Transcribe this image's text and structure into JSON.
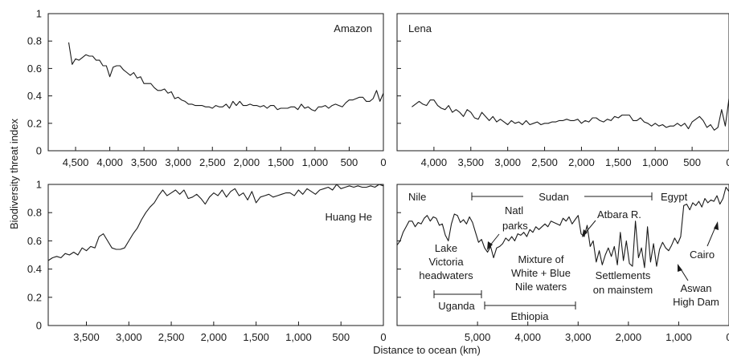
{
  "chart_data": {
    "type": "line",
    "ylabel": "Biodiversity threat index",
    "xlabel": "Distance to ocean (km)",
    "panels": [
      {
        "name": "Amazon",
        "xlim": [
          4900,
          0
        ],
        "ylim": [
          0,
          1
        ],
        "xticks": [
          4500,
          4000,
          3500,
          3000,
          2500,
          2000,
          1500,
          1000,
          500,
          0
        ],
        "xtick_labels": [
          "4,500",
          "4,000",
          "3,500",
          "3,000",
          "2,500",
          "2,000",
          "1,500",
          "1,000",
          "500",
          "0"
        ],
        "yticks": [
          0,
          0.2,
          0.4,
          0.6,
          0.8,
          1
        ],
        "ytick_labels": [
          "0",
          "0.2",
          "0.4",
          "0.6",
          "0.8",
          "1"
        ],
        "x": [
          4600,
          4550,
          4500,
          4450,
          4400,
          4350,
          4300,
          4250,
          4200,
          4150,
          4100,
          4050,
          4000,
          3950,
          3900,
          3850,
          3800,
          3750,
          3700,
          3650,
          3600,
          3550,
          3500,
          3450,
          3400,
          3350,
          3300,
          3250,
          3200,
          3150,
          3100,
          3050,
          3000,
          2950,
          2900,
          2850,
          2800,
          2750,
          2700,
          2650,
          2600,
          2550,
          2500,
          2450,
          2400,
          2350,
          2300,
          2250,
          2200,
          2150,
          2100,
          2050,
          2000,
          1950,
          1900,
          1850,
          1800,
          1750,
          1700,
          1650,
          1600,
          1550,
          1500,
          1450,
          1400,
          1350,
          1300,
          1250,
          1200,
          1150,
          1100,
          1050,
          1000,
          950,
          900,
          850,
          800,
          750,
          700,
          650,
          600,
          550,
          500,
          450,
          400,
          350,
          300,
          250,
          200,
          150,
          100,
          50,
          0
        ],
        "y": [
          0.79,
          0.63,
          0.67,
          0.66,
          0.68,
          0.7,
          0.69,
          0.69,
          0.66,
          0.66,
          0.62,
          0.62,
          0.54,
          0.61,
          0.62,
          0.62,
          0.59,
          0.57,
          0.55,
          0.57,
          0.53,
          0.54,
          0.49,
          0.49,
          0.49,
          0.46,
          0.44,
          0.44,
          0.45,
          0.42,
          0.43,
          0.38,
          0.39,
          0.37,
          0.36,
          0.34,
          0.34,
          0.33,
          0.33,
          0.33,
          0.32,
          0.32,
          0.31,
          0.33,
          0.32,
          0.32,
          0.34,
          0.31,
          0.36,
          0.33,
          0.36,
          0.33,
          0.33,
          0.34,
          0.33,
          0.33,
          0.32,
          0.33,
          0.31,
          0.33,
          0.33,
          0.3,
          0.31,
          0.31,
          0.31,
          0.32,
          0.32,
          0.3,
          0.34,
          0.31,
          0.32,
          0.3,
          0.29,
          0.32,
          0.32,
          0.33,
          0.31,
          0.33,
          0.34,
          0.33,
          0.32,
          0.35,
          0.37,
          0.37,
          0.38,
          0.39,
          0.39,
          0.36,
          0.36,
          0.38,
          0.44,
          0.36,
          0.42
        ]
      },
      {
        "name": "Lena",
        "xlim": [
          4500,
          0
        ],
        "ylim": [
          0,
          1
        ],
        "xticks": [
          4000,
          3500,
          3000,
          2500,
          2000,
          1500,
          1000,
          500,
          0
        ],
        "xtick_labels": [
          "4,000",
          "3,500",
          "3,000",
          "2,500",
          "2,000",
          "1,500",
          "1,000",
          "500",
          "0"
        ],
        "yticks": [
          0,
          0.2,
          0.4,
          0.6,
          0.8,
          1
        ],
        "x": [
          4300,
          4250,
          4200,
          4150,
          4100,
          4050,
          4000,
          3950,
          3900,
          3850,
          3800,
          3750,
          3700,
          3650,
          3600,
          3550,
          3500,
          3450,
          3400,
          3350,
          3300,
          3250,
          3200,
          3150,
          3100,
          3050,
          3000,
          2950,
          2900,
          2850,
          2800,
          2750,
          2700,
          2650,
          2600,
          2550,
          2500,
          2450,
          2400,
          2350,
          2300,
          2250,
          2200,
          2150,
          2100,
          2050,
          2000,
          1950,
          1900,
          1850,
          1800,
          1750,
          1700,
          1650,
          1600,
          1550,
          1500,
          1450,
          1400,
          1350,
          1300,
          1250,
          1200,
          1150,
          1100,
          1050,
          1000,
          950,
          900,
          850,
          800,
          750,
          700,
          650,
          600,
          550,
          500,
          450,
          400,
          350,
          300,
          250,
          200,
          150,
          100,
          50,
          0
        ],
        "y": [
          0.32,
          0.34,
          0.36,
          0.34,
          0.33,
          0.37,
          0.37,
          0.33,
          0.31,
          0.3,
          0.33,
          0.28,
          0.3,
          0.28,
          0.25,
          0.3,
          0.28,
          0.24,
          0.23,
          0.28,
          0.25,
          0.22,
          0.25,
          0.21,
          0.23,
          0.21,
          0.19,
          0.22,
          0.2,
          0.21,
          0.19,
          0.22,
          0.19,
          0.2,
          0.21,
          0.19,
          0.2,
          0.2,
          0.21,
          0.21,
          0.22,
          0.22,
          0.23,
          0.22,
          0.22,
          0.23,
          0.2,
          0.22,
          0.21,
          0.24,
          0.24,
          0.22,
          0.21,
          0.23,
          0.22,
          0.25,
          0.24,
          0.26,
          0.26,
          0.26,
          0.22,
          0.22,
          0.24,
          0.21,
          0.2,
          0.18,
          0.2,
          0.18,
          0.19,
          0.17,
          0.18,
          0.18,
          0.2,
          0.18,
          0.2,
          0.16,
          0.21,
          0.23,
          0.25,
          0.22,
          0.17,
          0.19,
          0.15,
          0.17,
          0.3,
          0.18,
          0.38
        ]
      },
      {
        "name": "Huang He",
        "xlim": [
          3950,
          0
        ],
        "ylim": [
          0,
          1
        ],
        "xticks": [
          3500,
          3000,
          2500,
          2000,
          1500,
          1000,
          500,
          0
        ],
        "xtick_labels": [
          "3,500",
          "3,000",
          "2,500",
          "2,000",
          "1,500",
          "1,000",
          "500",
          "0"
        ],
        "yticks": [
          0,
          0.2,
          0.4,
          0.6,
          0.8,
          1
        ],
        "ytick_labels": [
          "0",
          "0.2",
          "0.4",
          "0.6",
          "0.8",
          "1"
        ],
        "x": [
          3950,
          3900,
          3850,
          3800,
          3750,
          3700,
          3650,
          3600,
          3550,
          3500,
          3450,
          3400,
          3350,
          3300,
          3250,
          3200,
          3150,
          3100,
          3050,
          3000,
          2950,
          2900,
          2850,
          2800,
          2750,
          2700,
          2650,
          2600,
          2550,
          2500,
          2450,
          2400,
          2350,
          2300,
          2250,
          2200,
          2150,
          2100,
          2050,
          2000,
          1950,
          1900,
          1850,
          1800,
          1750,
          1700,
          1650,
          1600,
          1550,
          1500,
          1450,
          1400,
          1350,
          1300,
          1250,
          1200,
          1150,
          1100,
          1050,
          1000,
          950,
          900,
          850,
          800,
          750,
          700,
          650,
          600,
          550,
          500,
          450,
          400,
          350,
          300,
          250,
          200,
          150,
          100,
          50,
          0
        ],
        "y": [
          0.46,
          0.48,
          0.49,
          0.48,
          0.51,
          0.5,
          0.52,
          0.5,
          0.55,
          0.53,
          0.56,
          0.55,
          0.63,
          0.65,
          0.6,
          0.55,
          0.54,
          0.54,
          0.55,
          0.6,
          0.65,
          0.69,
          0.75,
          0.8,
          0.84,
          0.87,
          0.92,
          0.96,
          0.92,
          0.94,
          0.96,
          0.93,
          0.96,
          0.9,
          0.91,
          0.93,
          0.9,
          0.86,
          0.91,
          0.94,
          0.92,
          0.96,
          0.91,
          0.95,
          0.97,
          0.92,
          0.94,
          0.89,
          0.95,
          0.87,
          0.91,
          0.92,
          0.93,
          0.91,
          0.92,
          0.93,
          0.94,
          0.94,
          0.92,
          0.96,
          0.93,
          0.97,
          0.95,
          0.93,
          0.96,
          0.97,
          0.98,
          0.96,
          1.0,
          0.97,
          0.98,
          0.99,
          0.98,
          0.99,
          0.98,
          0.98,
          0.99,
          0.98,
          1.0,
          0.99
        ]
      },
      {
        "name": "Nile",
        "xlim": [
          6600,
          0
        ],
        "ylim": [
          0,
          1
        ],
        "xticks": [
          5000,
          4000,
          3000,
          2000,
          1000,
          0
        ],
        "xtick_labels": [
          "5,000",
          "4,000",
          "3,000",
          "2,000",
          "1,000",
          "0"
        ],
        "yticks": [
          0,
          0.2,
          0.4,
          0.6,
          0.8,
          1
        ],
        "x": [
          6600,
          6540,
          6480,
          6420,
          6360,
          6300,
          6240,
          6180,
          6120,
          6060,
          6000,
          5940,
          5880,
          5820,
          5760,
          5700,
          5640,
          5580,
          5520,
          5460,
          5400,
          5340,
          5280,
          5220,
          5160,
          5100,
          5040,
          4980,
          4920,
          4860,
          4800,
          4740,
          4680,
          4620,
          4560,
          4500,
          4440,
          4380,
          4320,
          4260,
          4200,
          4140,
          4080,
          4020,
          3960,
          3900,
          3840,
          3780,
          3720,
          3660,
          3600,
          3540,
          3480,
          3420,
          3360,
          3300,
          3240,
          3180,
          3120,
          3060,
          3000,
          2940,
          2880,
          2820,
          2760,
          2700,
          2640,
          2580,
          2520,
          2460,
          2400,
          2340,
          2280,
          2220,
          2160,
          2100,
          2040,
          1980,
          1920,
          1860,
          1800,
          1740,
          1680,
          1620,
          1560,
          1500,
          1440,
          1380,
          1320,
          1260,
          1200,
          1140,
          1080,
          1020,
          960,
          900,
          840,
          780,
          720,
          660,
          600,
          540,
          480,
          420,
          360,
          300,
          240,
          180,
          120,
          60,
          0
        ],
        "y": [
          0.57,
          0.6,
          0.66,
          0.7,
          0.74,
          0.74,
          0.7,
          0.73,
          0.72,
          0.76,
          0.78,
          0.74,
          0.77,
          0.76,
          0.71,
          0.72,
          0.64,
          0.6,
          0.72,
          0.79,
          0.78,
          0.73,
          0.75,
          0.72,
          0.77,
          0.73,
          0.66,
          0.59,
          0.61,
          0.55,
          0.52,
          0.56,
          0.48,
          0.55,
          0.56,
          0.58,
          0.62,
          0.6,
          0.63,
          0.6,
          0.65,
          0.64,
          0.66,
          0.63,
          0.68,
          0.66,
          0.7,
          0.68,
          0.7,
          0.72,
          0.7,
          0.74,
          0.73,
          0.72,
          0.71,
          0.76,
          0.74,
          0.77,
          0.72,
          0.75,
          0.78,
          0.65,
          0.63,
          0.71,
          0.56,
          0.6,
          0.45,
          0.53,
          0.43,
          0.5,
          0.55,
          0.49,
          0.56,
          0.43,
          0.66,
          0.46,
          0.6,
          0.44,
          0.42,
          0.74,
          0.48,
          0.55,
          0.41,
          0.7,
          0.45,
          0.58,
          0.42,
          0.54,
          0.59,
          0.55,
          0.53,
          0.57,
          0.62,
          0.58,
          0.63,
          0.85,
          0.86,
          0.82,
          0.87,
          0.85,
          0.88,
          0.84,
          0.9,
          0.87,
          0.89,
          0.88,
          0.92,
          0.86,
          0.9,
          0.98,
          0.95
        ]
      }
    ],
    "annotations": {
      "nile": {
        "sudan": "Sudan",
        "egypt": "Egypt",
        "atbara": "Atbara R.",
        "natl_parks": [
          "Natl",
          "parks"
        ],
        "lake_victoria": [
          "Lake",
          "Victoria",
          "headwaters"
        ],
        "mixture": [
          "Mixture of",
          "White + Blue",
          "Nile waters"
        ],
        "settlements": [
          "Settlements",
          "on mainstem"
        ],
        "aswan": [
          "Aswan",
          "High Dam"
        ],
        "cairo": "Cairo",
        "uganda": "Uganda",
        "ethiopia": "Ethiopia"
      }
    }
  }
}
